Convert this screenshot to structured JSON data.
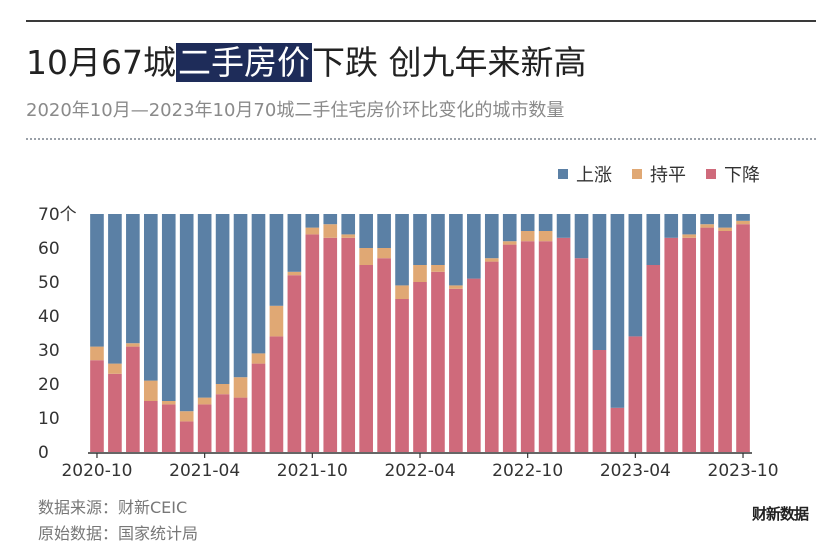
{
  "header": {
    "title_before": "10月67城",
    "title_highlight": "二手房价",
    "title_after": "下跌 创九年来新高",
    "subtitle": "2020年10月—2023年10月70城二手住宅房价环比变化的城市数量"
  },
  "legend": [
    {
      "label": "上涨",
      "color": "#5b80a5"
    },
    {
      "label": "持平",
      "color": "#e0a874"
    },
    {
      "label": "下降",
      "color": "#cf6a7b"
    }
  ],
  "footer": {
    "source": "数据来源：财新CEIC",
    "origin": "原始数据：国家统计局",
    "brand": "财新数据"
  },
  "chart_data": {
    "type": "bar",
    "stacked": true,
    "x_start": "2020-10",
    "categories": [
      "2020-10",
      "2020-11",
      "2020-12",
      "2021-01",
      "2021-02",
      "2021-03",
      "2021-04",
      "2021-05",
      "2021-06",
      "2021-07",
      "2021-08",
      "2021-09",
      "2021-10",
      "2021-11",
      "2021-12",
      "2022-01",
      "2022-02",
      "2022-03",
      "2022-04",
      "2022-05",
      "2022-06",
      "2022-07",
      "2022-08",
      "2022-09",
      "2022-10",
      "2022-11",
      "2022-12",
      "2023-01",
      "2023-02",
      "2023-03",
      "2023-04",
      "2023-05",
      "2023-06",
      "2023-07",
      "2023-08",
      "2023-09",
      "2023-10"
    ],
    "tick_labels": [
      "2020-10",
      "2021-04",
      "2021-10",
      "2022-04",
      "2022-10",
      "2023-04",
      "2023-10"
    ],
    "ylim": [
      0,
      70
    ],
    "yticks": [
      0,
      10,
      20,
      30,
      40,
      50,
      60,
      70
    ],
    "ytick_labels": [
      "0",
      "10",
      "20",
      "30",
      "40",
      "50",
      "60",
      "70个"
    ],
    "series": [
      {
        "name": "下降",
        "color": "#cf6a7b",
        "values": [
          27,
          23,
          31,
          15,
          14,
          9,
          14,
          17,
          16,
          26,
          34,
          52,
          64,
          63,
          63,
          55,
          57,
          45,
          50,
          53,
          48,
          51,
          56,
          61,
          62,
          62,
          63,
          57,
          30,
          13,
          34,
          55,
          63,
          63,
          66,
          65,
          67
        ]
      },
      {
        "name": "持平",
        "color": "#e0a874",
        "values": [
          4,
          3,
          1,
          6,
          1,
          3,
          2,
          3,
          6,
          3,
          9,
          1,
          2,
          4,
          1,
          5,
          3,
          4,
          5,
          2,
          1,
          0,
          1,
          1,
          3,
          3,
          0,
          0,
          0,
          0,
          0,
          0,
          0,
          1,
          1,
          1,
          1
        ]
      },
      {
        "name": "上涨",
        "color": "#5b80a5",
        "values": [
          39,
          44,
          38,
          49,
          55,
          58,
          54,
          50,
          48,
          41,
          27,
          17,
          4,
          3,
          6,
          10,
          10,
          21,
          15,
          15,
          21,
          19,
          13,
          8,
          5,
          5,
          7,
          13,
          40,
          57,
          36,
          15,
          7,
          6,
          3,
          4,
          2
        ]
      }
    ]
  }
}
